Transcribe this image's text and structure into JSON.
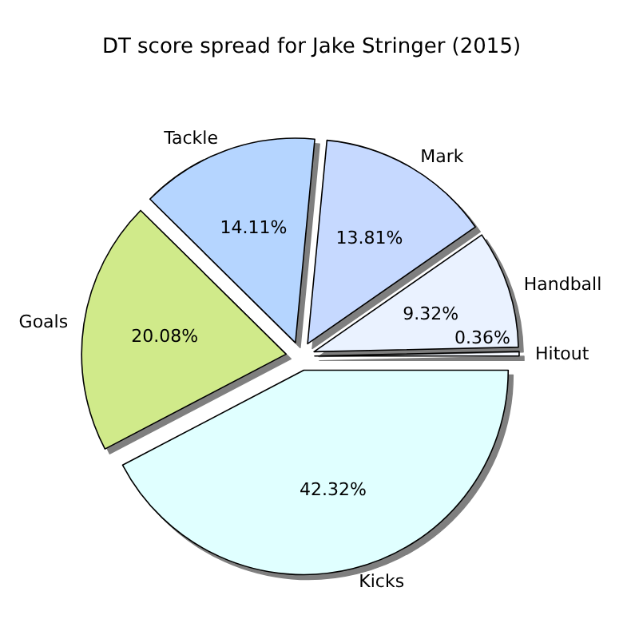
{
  "chart_data": {
    "type": "pie",
    "title": "DT score spread for Jake Stringer (2015)",
    "categories": [
      "Hitout",
      "Handball",
      "Mark",
      "Tackle",
      "Goals",
      "Kicks"
    ],
    "values": [
      0.36,
      9.32,
      13.81,
      14.11,
      20.08,
      42.32
    ],
    "colors": [
      "#f4f8ff",
      "#eaf2ff",
      "#c6d9ff",
      "#b5d5ff",
      "#d0ea8a",
      "#e0ffff"
    ],
    "value_labels": [
      "0.36%",
      "9.32%",
      "13.81%",
      "14.11%",
      "20.08%",
      "42.32%"
    ],
    "legend": false
  }
}
